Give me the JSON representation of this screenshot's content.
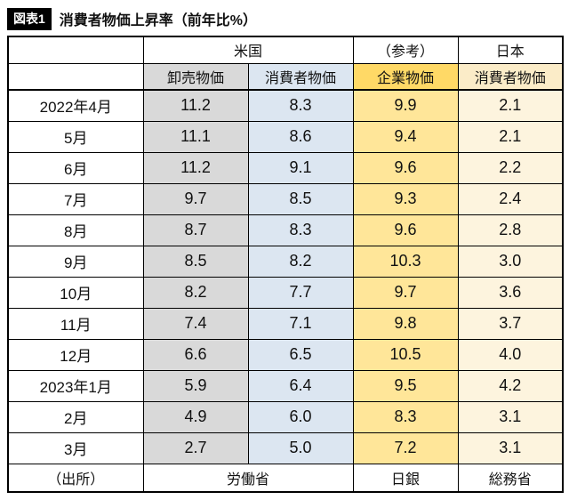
{
  "figure": {
    "badge": "図表1",
    "title": "消費者物価上昇率（前年比%）"
  },
  "table": {
    "group_headers": {
      "us": "米国",
      "reference": "（参考）",
      "japan": "日本"
    },
    "column_headers": [
      "卸売物価",
      "消費者物価",
      "企業物価",
      "消費者物価"
    ],
    "rows": [
      {
        "label": "2022年4月",
        "values": [
          "11.2",
          "8.3",
          "9.9",
          "2.1"
        ]
      },
      {
        "label": "5月",
        "values": [
          "11.1",
          "8.6",
          "9.4",
          "2.1"
        ]
      },
      {
        "label": "6月",
        "values": [
          "11.2",
          "9.1",
          "9.6",
          "2.2"
        ]
      },
      {
        "label": "7月",
        "values": [
          "9.7",
          "8.5",
          "9.3",
          "2.4"
        ]
      },
      {
        "label": "8月",
        "values": [
          "8.7",
          "8.3",
          "9.6",
          "2.8"
        ]
      },
      {
        "label": "9月",
        "values": [
          "8.5",
          "8.2",
          "10.3",
          "3.0"
        ]
      },
      {
        "label": "10月",
        "values": [
          "8.2",
          "7.7",
          "9.7",
          "3.6"
        ]
      },
      {
        "label": "11月",
        "values": [
          "7.4",
          "7.1",
          "9.8",
          "3.7"
        ]
      },
      {
        "label": "12月",
        "values": [
          "6.6",
          "6.5",
          "10.5",
          "4.0"
        ]
      },
      {
        "label": "2023年1月",
        "values": [
          "5.9",
          "6.4",
          "9.5",
          "4.2"
        ]
      },
      {
        "label": "2月",
        "values": [
          "4.9",
          "6.0",
          "8.3",
          "3.1"
        ]
      },
      {
        "label": "3月",
        "values": [
          "2.7",
          "5.0",
          "7.2",
          "3.1"
        ]
      }
    ],
    "footer": {
      "label": "（出所）",
      "sources": [
        "労働省",
        "日銀",
        "総務省"
      ]
    }
  },
  "colors": {
    "us_wholesale_column": "#d9d9d9",
    "us_cpi_column": "#dce6f1",
    "jp_cgpi_header": "#ffd966",
    "jp_cgpi_cells": "#ffe699",
    "jp_cpi_header": "#fbecc8",
    "jp_cpi_cells": "#fdf4de",
    "badge_background": "#000000"
  },
  "chart_data": {
    "type": "table",
    "title": "消費者物価上昇率（前年比%）",
    "categories": [
      "2022年4月",
      "5月",
      "6月",
      "7月",
      "8月",
      "9月",
      "10月",
      "11月",
      "12月",
      "2023年1月",
      "2月",
      "3月"
    ],
    "series": [
      {
        "name": "米国 卸売物価",
        "source": "労働省",
        "values": [
          11.2,
          11.1,
          11.2,
          9.7,
          8.7,
          8.5,
          8.2,
          7.4,
          6.6,
          5.9,
          4.9,
          2.7
        ]
      },
      {
        "name": "米国 消費者物価",
        "source": "労働省",
        "values": [
          8.3,
          8.6,
          9.1,
          8.5,
          8.3,
          8.2,
          7.7,
          7.1,
          6.5,
          6.4,
          6.0,
          5.0
        ]
      },
      {
        "name": "日本 企業物価",
        "source": "日銀",
        "values": [
          9.9,
          9.4,
          9.6,
          9.3,
          9.6,
          10.3,
          9.7,
          9.8,
          10.5,
          9.5,
          8.3,
          7.2
        ]
      },
      {
        "name": "日本 消費者物価",
        "source": "総務省",
        "values": [
          2.1,
          2.1,
          2.2,
          2.4,
          2.8,
          3.0,
          3.6,
          3.7,
          4.0,
          4.2,
          3.1,
          3.1
        ]
      }
    ]
  }
}
